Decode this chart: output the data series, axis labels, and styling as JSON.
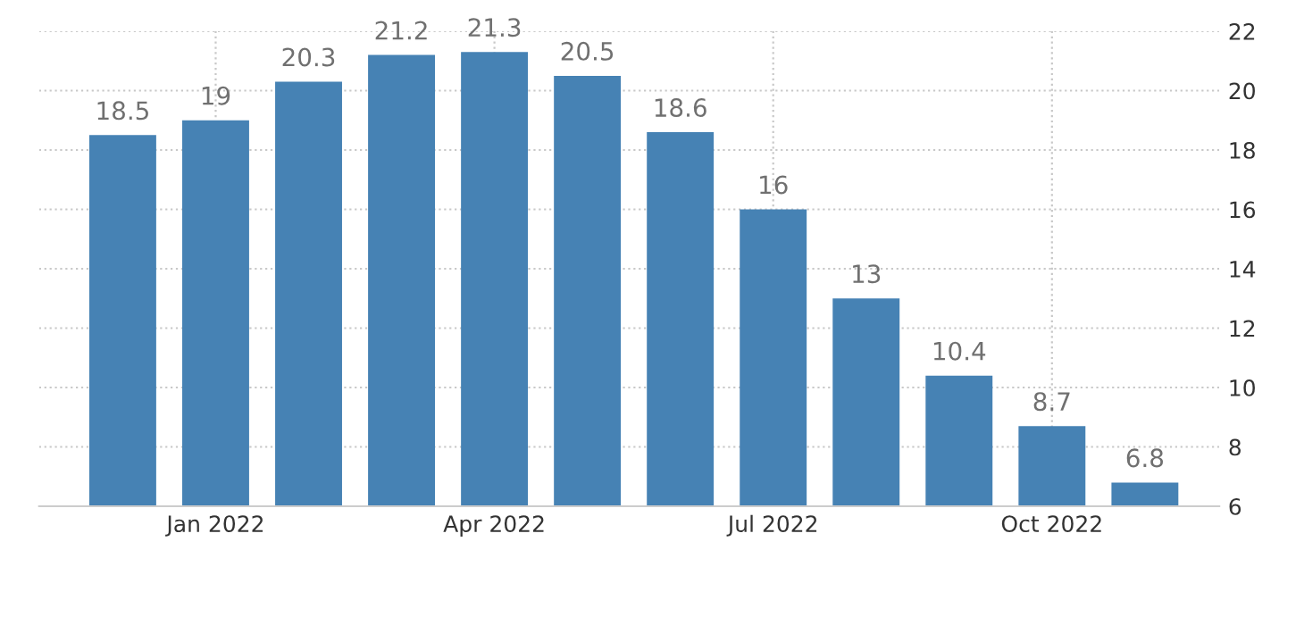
{
  "chart_data": {
    "type": "bar",
    "categories": [
      null,
      "Jan 2022",
      null,
      null,
      "Apr 2022",
      null,
      null,
      "Jul 2022",
      null,
      null,
      "Oct 2022",
      null
    ],
    "values": [
      18.5,
      19,
      20.3,
      21.2,
      21.3,
      20.5,
      18.6,
      16,
      13,
      10.4,
      8.7,
      6.8
    ],
    "color": "#4682b4",
    "ylim": [
      6,
      22
    ],
    "yticks": [
      6,
      8,
      10,
      12,
      14,
      16,
      18,
      20,
      22
    ],
    "grid": true,
    "data_labels": true
  }
}
